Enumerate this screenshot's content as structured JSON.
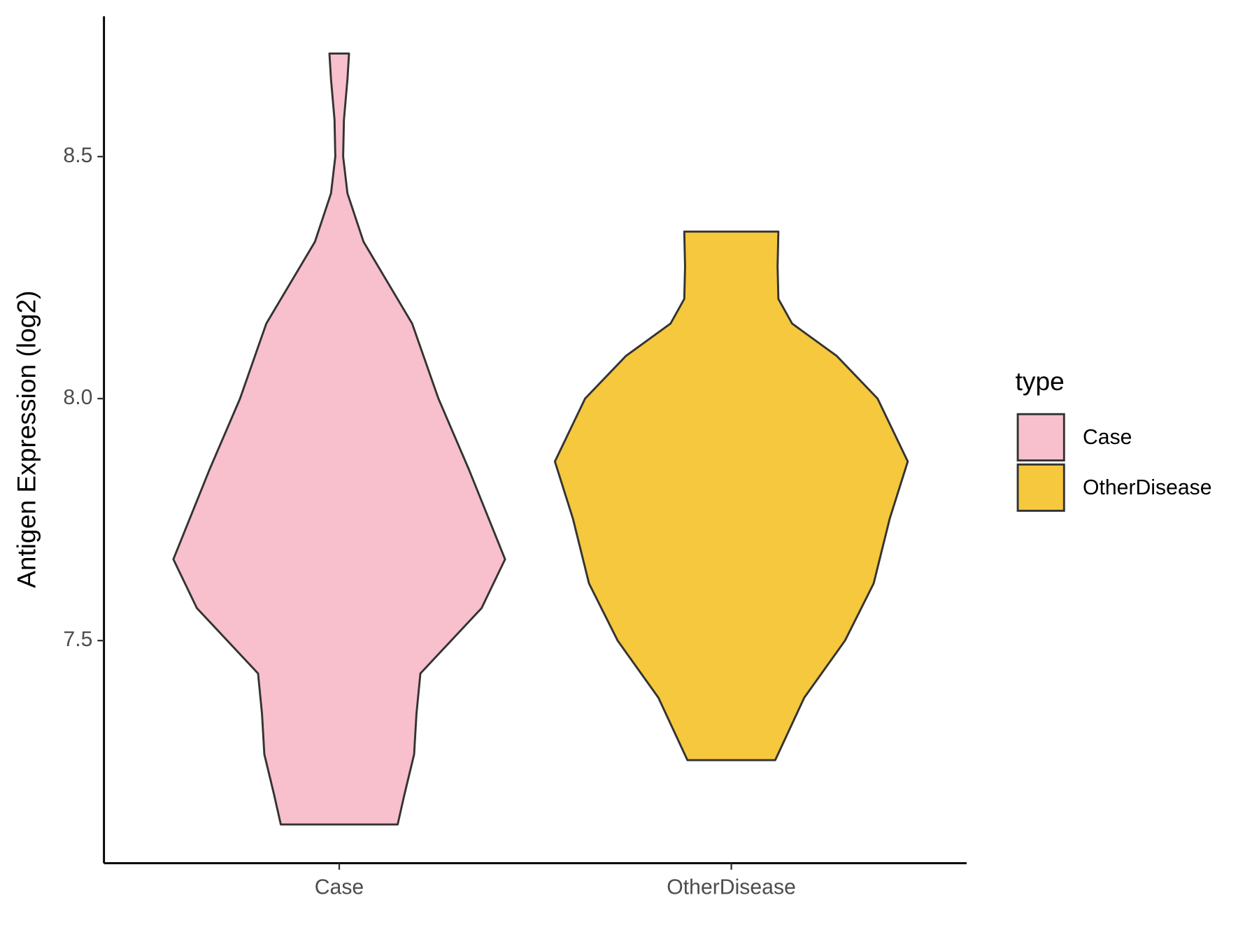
{
  "chart_data": {
    "type": "violin",
    "y_label": "Antigen Expression (log2)",
    "categories": [
      "Case",
      "OtherDisease"
    ],
    "ylim": [
      7.04,
      8.79
    ],
    "yticks": [
      7.5,
      {
        "value": 8,
        "label": "8.0"
      },
      8.5
    ],
    "legend_title": "type",
    "legend_position": "right",
    "series": [
      {
        "name": "Case",
        "color": "#f7c0cc",
        "y": [
          8.713,
          8.66,
          8.576,
          8.5,
          8.424,
          8.324,
          8.155,
          8.0,
          7.853,
          7.668,
          7.567,
          7.432,
          7.349,
          7.265,
          7.181,
          7.12
        ],
        "width": [
          0.025,
          0.021,
          0.012,
          0.01,
          0.021,
          0.062,
          0.186,
          0.253,
          0.331,
          0.423,
          0.363,
          0.207,
          0.197,
          0.191,
          0.166,
          0.149
        ]
      },
      {
        "name": "OtherDisease",
        "color": "#f5c83d",
        "y": [
          8.345,
          8.273,
          8.206,
          8.155,
          8.088,
          8.0,
          7.87,
          7.752,
          7.618,
          7.5,
          7.382,
          7.253
        ],
        "width": [
          0.12,
          0.118,
          0.12,
          0.155,
          0.269,
          0.373,
          0.45,
          0.404,
          0.363,
          0.29,
          0.186,
          0.112
        ]
      }
    ]
  }
}
